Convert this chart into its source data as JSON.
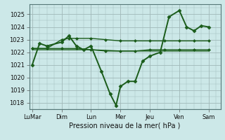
{
  "background_color": "#cce8e8",
  "grid_color": "#a0b8b8",
  "line_color": "#1a5c1a",
  "xlabel": "Pression niveau de la mer( hPa )",
  "ylim": [
    1017.5,
    1025.8
  ],
  "yticks": [
    1018,
    1019,
    1020,
    1021,
    1022,
    1023,
    1024,
    1025
  ],
  "xtick_labels": [
    "LuMar",
    "Dim",
    "Lun",
    "Mer",
    "Jeu",
    "Ven",
    "Sam"
  ],
  "xtick_positions": [
    0,
    2,
    4,
    6,
    8,
    10,
    12
  ],
  "xlim": [
    -0.2,
    12.8
  ],
  "lines": [
    {
      "x": [
        0,
        0.5,
        1.0,
        2.0,
        2.5,
        3.0,
        3.5,
        4.0,
        4.7,
        5.3,
        5.7,
        6.0,
        6.5,
        7.0,
        7.5,
        8.0,
        8.7,
        9.3,
        10.0,
        10.5,
        11.0,
        11.5,
        12.0
      ],
      "y": [
        1021.0,
        1022.7,
        1022.5,
        1022.8,
        1023.3,
        1022.5,
        1022.2,
        1022.5,
        1020.5,
        1018.7,
        1017.8,
        1019.3,
        1019.7,
        1019.7,
        1021.3,
        1021.7,
        1022.0,
        1024.8,
        1025.3,
        1024.0,
        1023.7,
        1024.1,
        1024.0
      ],
      "lw": 1.4,
      "marker": "D",
      "ms": 2.5
    },
    {
      "x": [
        0,
        1.0,
        2.0,
        2.5,
        3.0,
        4.0,
        5.0,
        6.0,
        7.0,
        8.0,
        9.0,
        10.0,
        11.0,
        12.0
      ],
      "y": [
        1022.3,
        1022.3,
        1023.0,
        1023.1,
        1023.1,
        1023.1,
        1023.0,
        1022.9,
        1022.9,
        1022.9,
        1022.9,
        1022.9,
        1022.9,
        1022.9
      ],
      "lw": 1.0,
      "marker": "D",
      "ms": 2.0
    },
    {
      "x": [
        0,
        1.0,
        2.0,
        3.0,
        4.0,
        5.0,
        6.0,
        7.0,
        8.0,
        9.0,
        10.0,
        11.0,
        12.0
      ],
      "y": [
        1022.3,
        1022.3,
        1022.3,
        1022.3,
        1022.2,
        1022.1,
        1022.1,
        1022.1,
        1022.2,
        1022.2,
        1022.2,
        1022.2,
        1022.2
      ],
      "lw": 1.0,
      "marker": "D",
      "ms": 2.0
    },
    {
      "x": [
        0,
        2.0,
        4.0,
        6.0,
        8.0,
        10.0,
        12.0
      ],
      "y": [
        1022.2,
        1022.2,
        1022.2,
        1022.1,
        1022.1,
        1022.1,
        1022.1
      ],
      "lw": 1.0,
      "marker": null,
      "ms": 0
    }
  ]
}
